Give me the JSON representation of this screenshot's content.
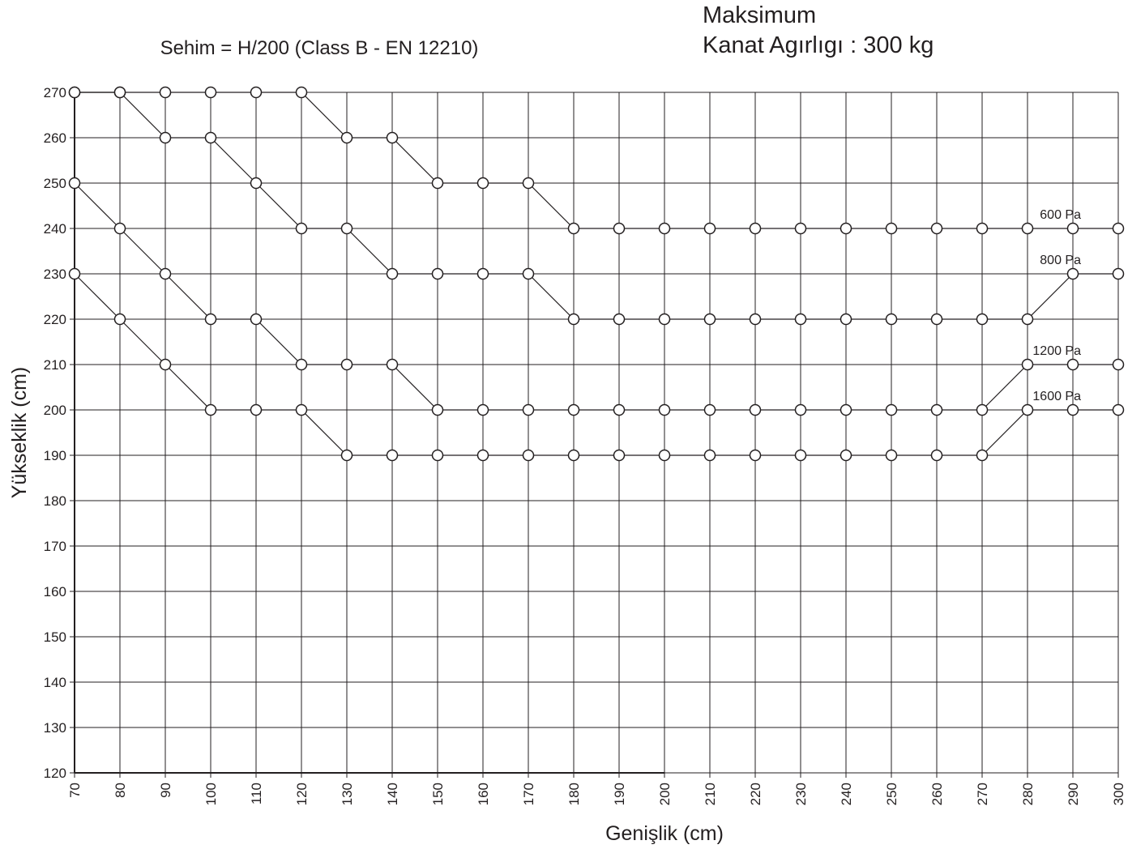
{
  "chart_data": {
    "type": "line",
    "title": "Sehim = H/200 (Class B - EN 12210)",
    "subtitle_lines": [
      "Maksimum",
      "Kanat Agırlıgı : 300 kg"
    ],
    "xlabel": "Genişlik (cm)",
    "ylabel": "Yükseklik (cm)",
    "xlim": [
      70,
      300
    ],
    "ylim": [
      120,
      270
    ],
    "x_ticks": [
      70,
      80,
      90,
      100,
      110,
      120,
      130,
      140,
      150,
      160,
      170,
      180,
      190,
      200,
      210,
      220,
      230,
      240,
      250,
      260,
      270,
      280,
      290,
      300
    ],
    "y_ticks": [
      120,
      130,
      140,
      150,
      160,
      170,
      180,
      190,
      200,
      210,
      220,
      230,
      240,
      250,
      260,
      270
    ],
    "grid": true,
    "marker": "open-circle",
    "line_color": "#231f20",
    "x": [
      70,
      80,
      90,
      100,
      110,
      120,
      130,
      140,
      150,
      160,
      170,
      180,
      190,
      200,
      210,
      220,
      230,
      240,
      250,
      260,
      270,
      280,
      290,
      300
    ],
    "series": [
      {
        "name": "600 Pa",
        "values": [
          270,
          270,
          260,
          260,
          250,
          240,
          240,
          230,
          230,
          230,
          230,
          220,
          220,
          220,
          220,
          220,
          220,
          220,
          220,
          220,
          220,
          220,
          230,
          230
        ]
      },
      {
        "name": "800 Pa",
        "values": [
          250,
          240,
          230,
          220,
          220,
          210,
          210,
          210,
          200,
          200,
          200,
          200,
          200,
          200,
          200,
          200,
          200,
          200,
          200,
          200,
          200,
          210,
          210,
          210
        ]
      },
      {
        "name": "1200 Pa",
        "values": [
          230,
          220,
          210,
          200,
          200,
          200,
          190,
          190,
          190,
          190,
          190,
          190,
          190,
          190,
          190,
          190,
          190,
          190,
          190,
          190,
          190,
          200,
          200,
          200
        ]
      },
      {
        "name": "1600 Pa",
        "values": [
          270,
          270,
          270,
          270,
          270,
          270,
          260,
          260,
          250,
          250,
          250,
          240,
          240,
          240,
          240,
          240,
          240,
          240,
          240,
          240,
          240,
          240,
          240,
          240
        ]
      }
    ],
    "series_labels": [
      {
        "text": "600 Pa",
        "x": 290,
        "y": 240
      },
      {
        "text": "800 Pa",
        "x": 290,
        "y": 230
      },
      {
        "text": "1200 Pa",
        "x": 290,
        "y": 210
      },
      {
        "text": "1600 Pa",
        "x": 290,
        "y": 200
      }
    ]
  }
}
